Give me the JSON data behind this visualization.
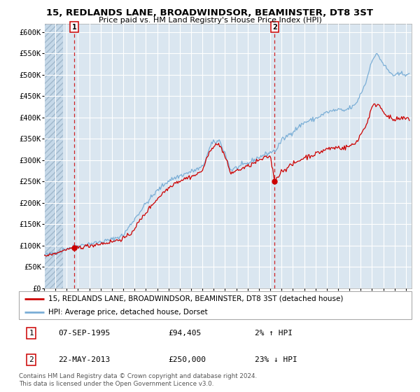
{
  "title1": "15, REDLANDS LANE, BROADWINDSOR, BEAMINSTER, DT8 3ST",
  "title2": "Price paid vs. HM Land Registry's House Price Index (HPI)",
  "bg_color": "#dae6f0",
  "grid_color": "#ffffff",
  "hpi_color": "#7aaed6",
  "price_color": "#cc0000",
  "sale1_date_num": 1995.68,
  "sale1_price": 94405,
  "sale2_date_num": 2013.39,
  "sale2_price": 250000,
  "legend_line1": "15, REDLANDS LANE, BROADWINDSOR, BEAMINSTER, DT8 3ST (detached house)",
  "legend_line2": "HPI: Average price, detached house, Dorset",
  "table_row1": [
    "1",
    "07-SEP-1995",
    "£94,405",
    "2% ↑ HPI"
  ],
  "table_row2": [
    "2",
    "22-MAY-2013",
    "£250,000",
    "23% ↓ HPI"
  ],
  "footer": "Contains HM Land Registry data © Crown copyright and database right 2024.\nThis data is licensed under the Open Government Licence v3.0.",
  "ylim": [
    0,
    620000
  ],
  "yticks": [
    0,
    50000,
    100000,
    150000,
    200000,
    250000,
    300000,
    350000,
    400000,
    450000,
    500000,
    550000,
    600000
  ],
  "ytick_labels": [
    "£0",
    "£50K",
    "£100K",
    "£150K",
    "£200K",
    "£250K",
    "£300K",
    "£350K",
    "£400K",
    "£450K",
    "£500K",
    "£550K",
    "£600K"
  ],
  "xlim_start": 1993.0,
  "xlim_end": 2025.5,
  "xtick_years": [
    1993,
    1994,
    1995,
    1996,
    1997,
    1998,
    1999,
    2000,
    2001,
    2002,
    2003,
    2004,
    2005,
    2006,
    2007,
    2008,
    2009,
    2010,
    2011,
    2012,
    2013,
    2014,
    2015,
    2016,
    2017,
    2018,
    2019,
    2020,
    2021,
    2022,
    2023,
    2024,
    2025
  ],
  "hpi_key_years": [
    1993.0,
    1994.0,
    1995.0,
    1996.0,
    1997.0,
    1998.0,
    1999.0,
    2000.0,
    2001.0,
    2002.0,
    2003.0,
    2004.0,
    2005.0,
    2006.0,
    2007.0,
    2007.8,
    2008.5,
    2009.0,
    2009.5,
    2010.0,
    2011.0,
    2012.0,
    2013.0,
    2013.5,
    2014.0,
    2015.0,
    2016.0,
    2017.0,
    2018.0,
    2019.0,
    2019.5,
    2020.5,
    2021.0,
    2021.5,
    2022.0,
    2022.5,
    2023.0,
    2023.5,
    2024.0,
    2024.5,
    2025.0
  ],
  "hpi_key_vals": [
    77000,
    83000,
    93000,
    99000,
    104000,
    108000,
    114000,
    124000,
    162000,
    198000,
    228000,
    252000,
    263000,
    273000,
    283000,
    338000,
    346000,
    316000,
    276000,
    282000,
    292000,
    307000,
    318000,
    323000,
    346000,
    367000,
    388000,
    397000,
    412000,
    418000,
    415000,
    428000,
    455000,
    485000,
    537000,
    548000,
    525000,
    507000,
    497000,
    502000,
    502000
  ],
  "price_key_years_seg1": [
    1993.0,
    1994.0,
    1995.0,
    1995.68
  ],
  "price_key_vals_seg1": [
    75000,
    81000,
    91000,
    94405
  ],
  "price_key_years_seg2": [
    1995.68,
    1996.5,
    1997.5,
    1998.5,
    1999.5,
    2000.5,
    2001.5,
    2002.5,
    2003.5,
    2004.5,
    2005.5,
    2006.5,
    2007.0,
    2007.8,
    2008.5,
    2009.0,
    2009.5,
    2010.0,
    2011.0,
    2012.0,
    2013.0,
    2013.39
  ],
  "price_key_vals_seg2": [
    94405,
    97000,
    102000,
    106000,
    112000,
    122000,
    159000,
    194000,
    223000,
    246000,
    257000,
    266000,
    276000,
    330000,
    338000,
    308000,
    269000,
    275000,
    285000,
    299000,
    310000,
    250000
  ],
  "price_key_years_seg3": [
    2013.39,
    2014.0,
    2015.0,
    2016.0,
    2017.0,
    2018.0,
    2019.0,
    2019.5,
    2020.5,
    2021.0,
    2021.5,
    2022.0,
    2022.5,
    2023.0,
    2023.5,
    2024.0,
    2024.5,
    2025.0
  ],
  "price_key_vals_seg3": [
    250000,
    274000,
    290000,
    306000,
    314000,
    326000,
    330000,
    328000,
    338000,
    360000,
    383000,
    424000,
    433000,
    415000,
    400000,
    393000,
    397000,
    397000
  ]
}
